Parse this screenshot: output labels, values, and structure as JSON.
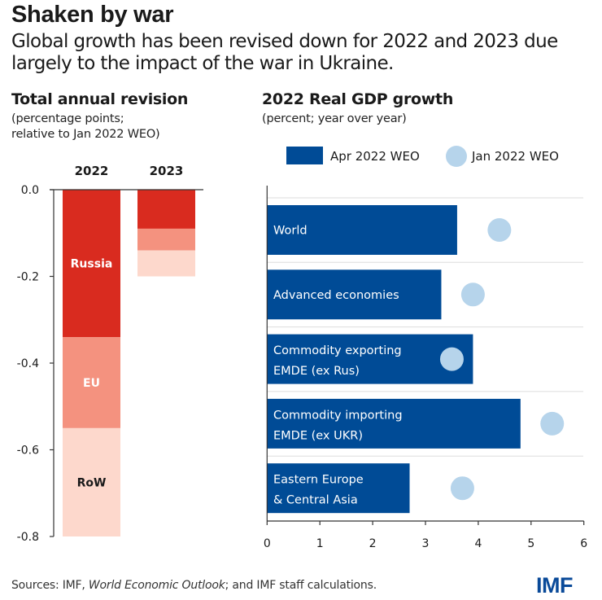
{
  "header": {
    "title": "Shaken by war",
    "subtitle": "Global growth has been revised down for 2022 and 2023 due largely to the impact of the war in Ukraine."
  },
  "footer": {
    "sources_prefix": "Sources: IMF, ",
    "sources_italic": "World Economic Outlook",
    "sources_suffix": "; and IMF staff calculations.",
    "logo": "IMF"
  },
  "colors": {
    "russia": "#d92b1f",
    "eu": "#f4927f",
    "row": "#fdd8cc",
    "apr_bar": "#004b96",
    "jan_dot": "#b6d4eb",
    "axis": "#333333",
    "grid": "#dddddd"
  },
  "chart_data": [
    {
      "type": "bar",
      "stacked": true,
      "title": "Total annual revision",
      "subtitle_lines": [
        "(percentage points;",
        "relative to Jan 2022 WEO)"
      ],
      "categories": [
        "2022",
        "2023"
      ],
      "series": [
        {
          "name": "Russia",
          "key": "russia",
          "values": [
            -0.34,
            -0.09
          ],
          "label_color": "#ffffff"
        },
        {
          "name": "EU",
          "key": "eu",
          "values": [
            -0.21,
            -0.05
          ],
          "label_color": "#ffffff"
        },
        {
          "name": "RoW",
          "key": "row",
          "values": [
            -0.25,
            -0.06
          ],
          "label_color": "#1a1a1a"
        }
      ],
      "segment_labels_on": "2022",
      "ylim": [
        -0.8,
        0.0
      ],
      "yticks": [
        "0.0",
        "-0.2",
        "-0.4",
        "-0.6",
        "-0.8"
      ],
      "ytick_values": [
        0.0,
        -0.2,
        -0.4,
        -0.6,
        -0.8
      ],
      "xlabel": "",
      "ylabel": ""
    },
    {
      "type": "bar",
      "orientation": "horizontal",
      "title": "2022 Real GDP growth",
      "subtitle_lines": [
        "(percent; year over year)"
      ],
      "legend": [
        {
          "name": "Apr 2022 WEO",
          "marker": "bar"
        },
        {
          "name": "Jan 2022 WEO",
          "marker": "dot"
        }
      ],
      "legend_position": "top",
      "categories": [
        [
          "World"
        ],
        [
          "Advanced economies"
        ],
        [
          "Commodity exporting",
          "EMDE (ex Rus)"
        ],
        [
          "Commodity importing",
          "EMDE (ex UKR)"
        ],
        [
          "Eastern Europe",
          "& Central Asia"
        ]
      ],
      "series": [
        {
          "name": "Apr 2022 WEO",
          "values": [
            3.6,
            3.3,
            3.9,
            4.8,
            2.7
          ]
        },
        {
          "name": "Jan 2022 WEO",
          "values": [
            4.4,
            3.9,
            3.5,
            5.4,
            3.7
          ]
        }
      ],
      "xlim": [
        0,
        6
      ],
      "xticks": [
        "0",
        "1",
        "2",
        "3",
        "4",
        "5",
        "6"
      ],
      "xlabel": "",
      "ylabel": "",
      "grid": "horizontal separators"
    }
  ]
}
